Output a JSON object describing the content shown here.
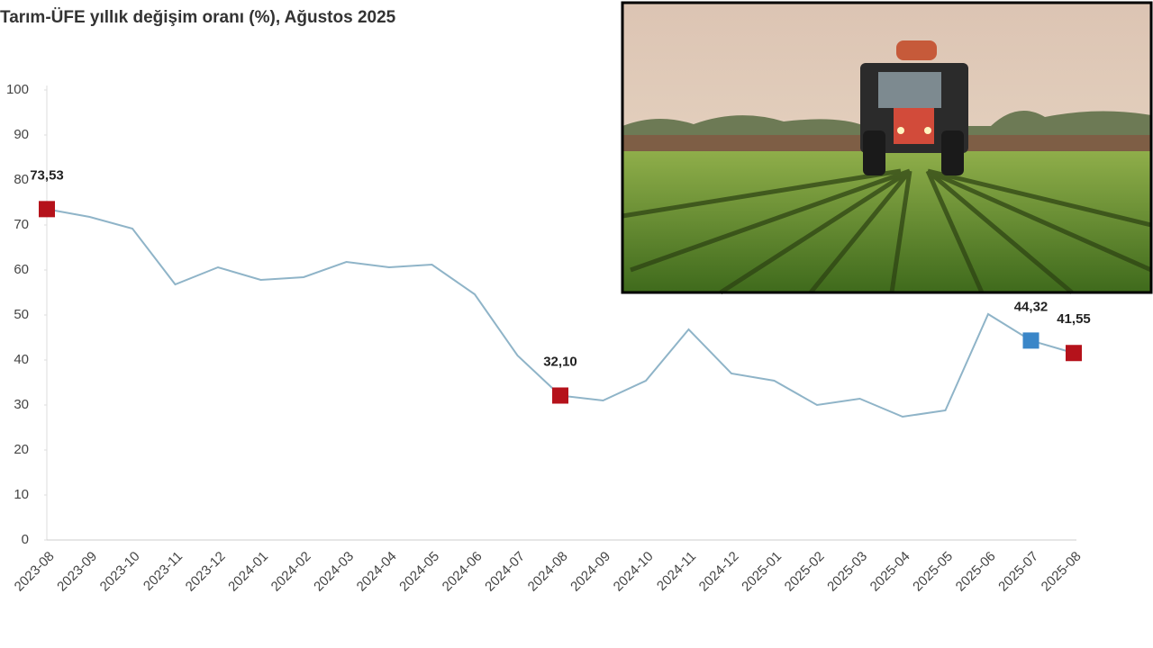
{
  "chart_data": {
    "type": "line",
    "title": "Tarım-ÜFE yıllık değişim oranı (%), Ağustos 2025",
    "categories": [
      "2023-08",
      "2023-09",
      "2023-10",
      "2023-11",
      "2023-12",
      "2024-01",
      "2024-02",
      "2024-03",
      "2024-04",
      "2024-05",
      "2024-06",
      "2024-07",
      "2024-08",
      "2024-09",
      "2024-10",
      "2024-11",
      "2024-12",
      "2025-01",
      "2025-02",
      "2025-03",
      "2025-04",
      "2025-05",
      "2025-06",
      "2025-07",
      "2025-08"
    ],
    "values": [
      73.53,
      71.8,
      69.2,
      56.8,
      60.6,
      57.8,
      58.4,
      61.8,
      60.6,
      61.2,
      54.6,
      41.0,
      32.1,
      31.0,
      35.4,
      46.8,
      37.0,
      35.4,
      30.0,
      31.4,
      27.4,
      28.8,
      50.2,
      44.32,
      41.55
    ],
    "value_labels": [
      "73,53",
      null,
      null,
      null,
      null,
      null,
      null,
      null,
      null,
      null,
      null,
      null,
      "32,10",
      null,
      null,
      null,
      null,
      null,
      null,
      null,
      null,
      null,
      null,
      "44,32",
      "41,55"
    ],
    "color": "#8fb4c8",
    "highlights": [
      {
        "index": 0,
        "color": "#b5121b"
      },
      {
        "index": 12,
        "color": "#b5121b"
      },
      {
        "index": 23,
        "color": "#3a86c8"
      },
      {
        "index": 24,
        "color": "#b5121b"
      }
    ],
    "ylim": [
      0,
      100
    ],
    "yticks": [
      0,
      10,
      20,
      30,
      40,
      50,
      60,
      70,
      80,
      90,
      100
    ],
    "grid": false
  }
}
